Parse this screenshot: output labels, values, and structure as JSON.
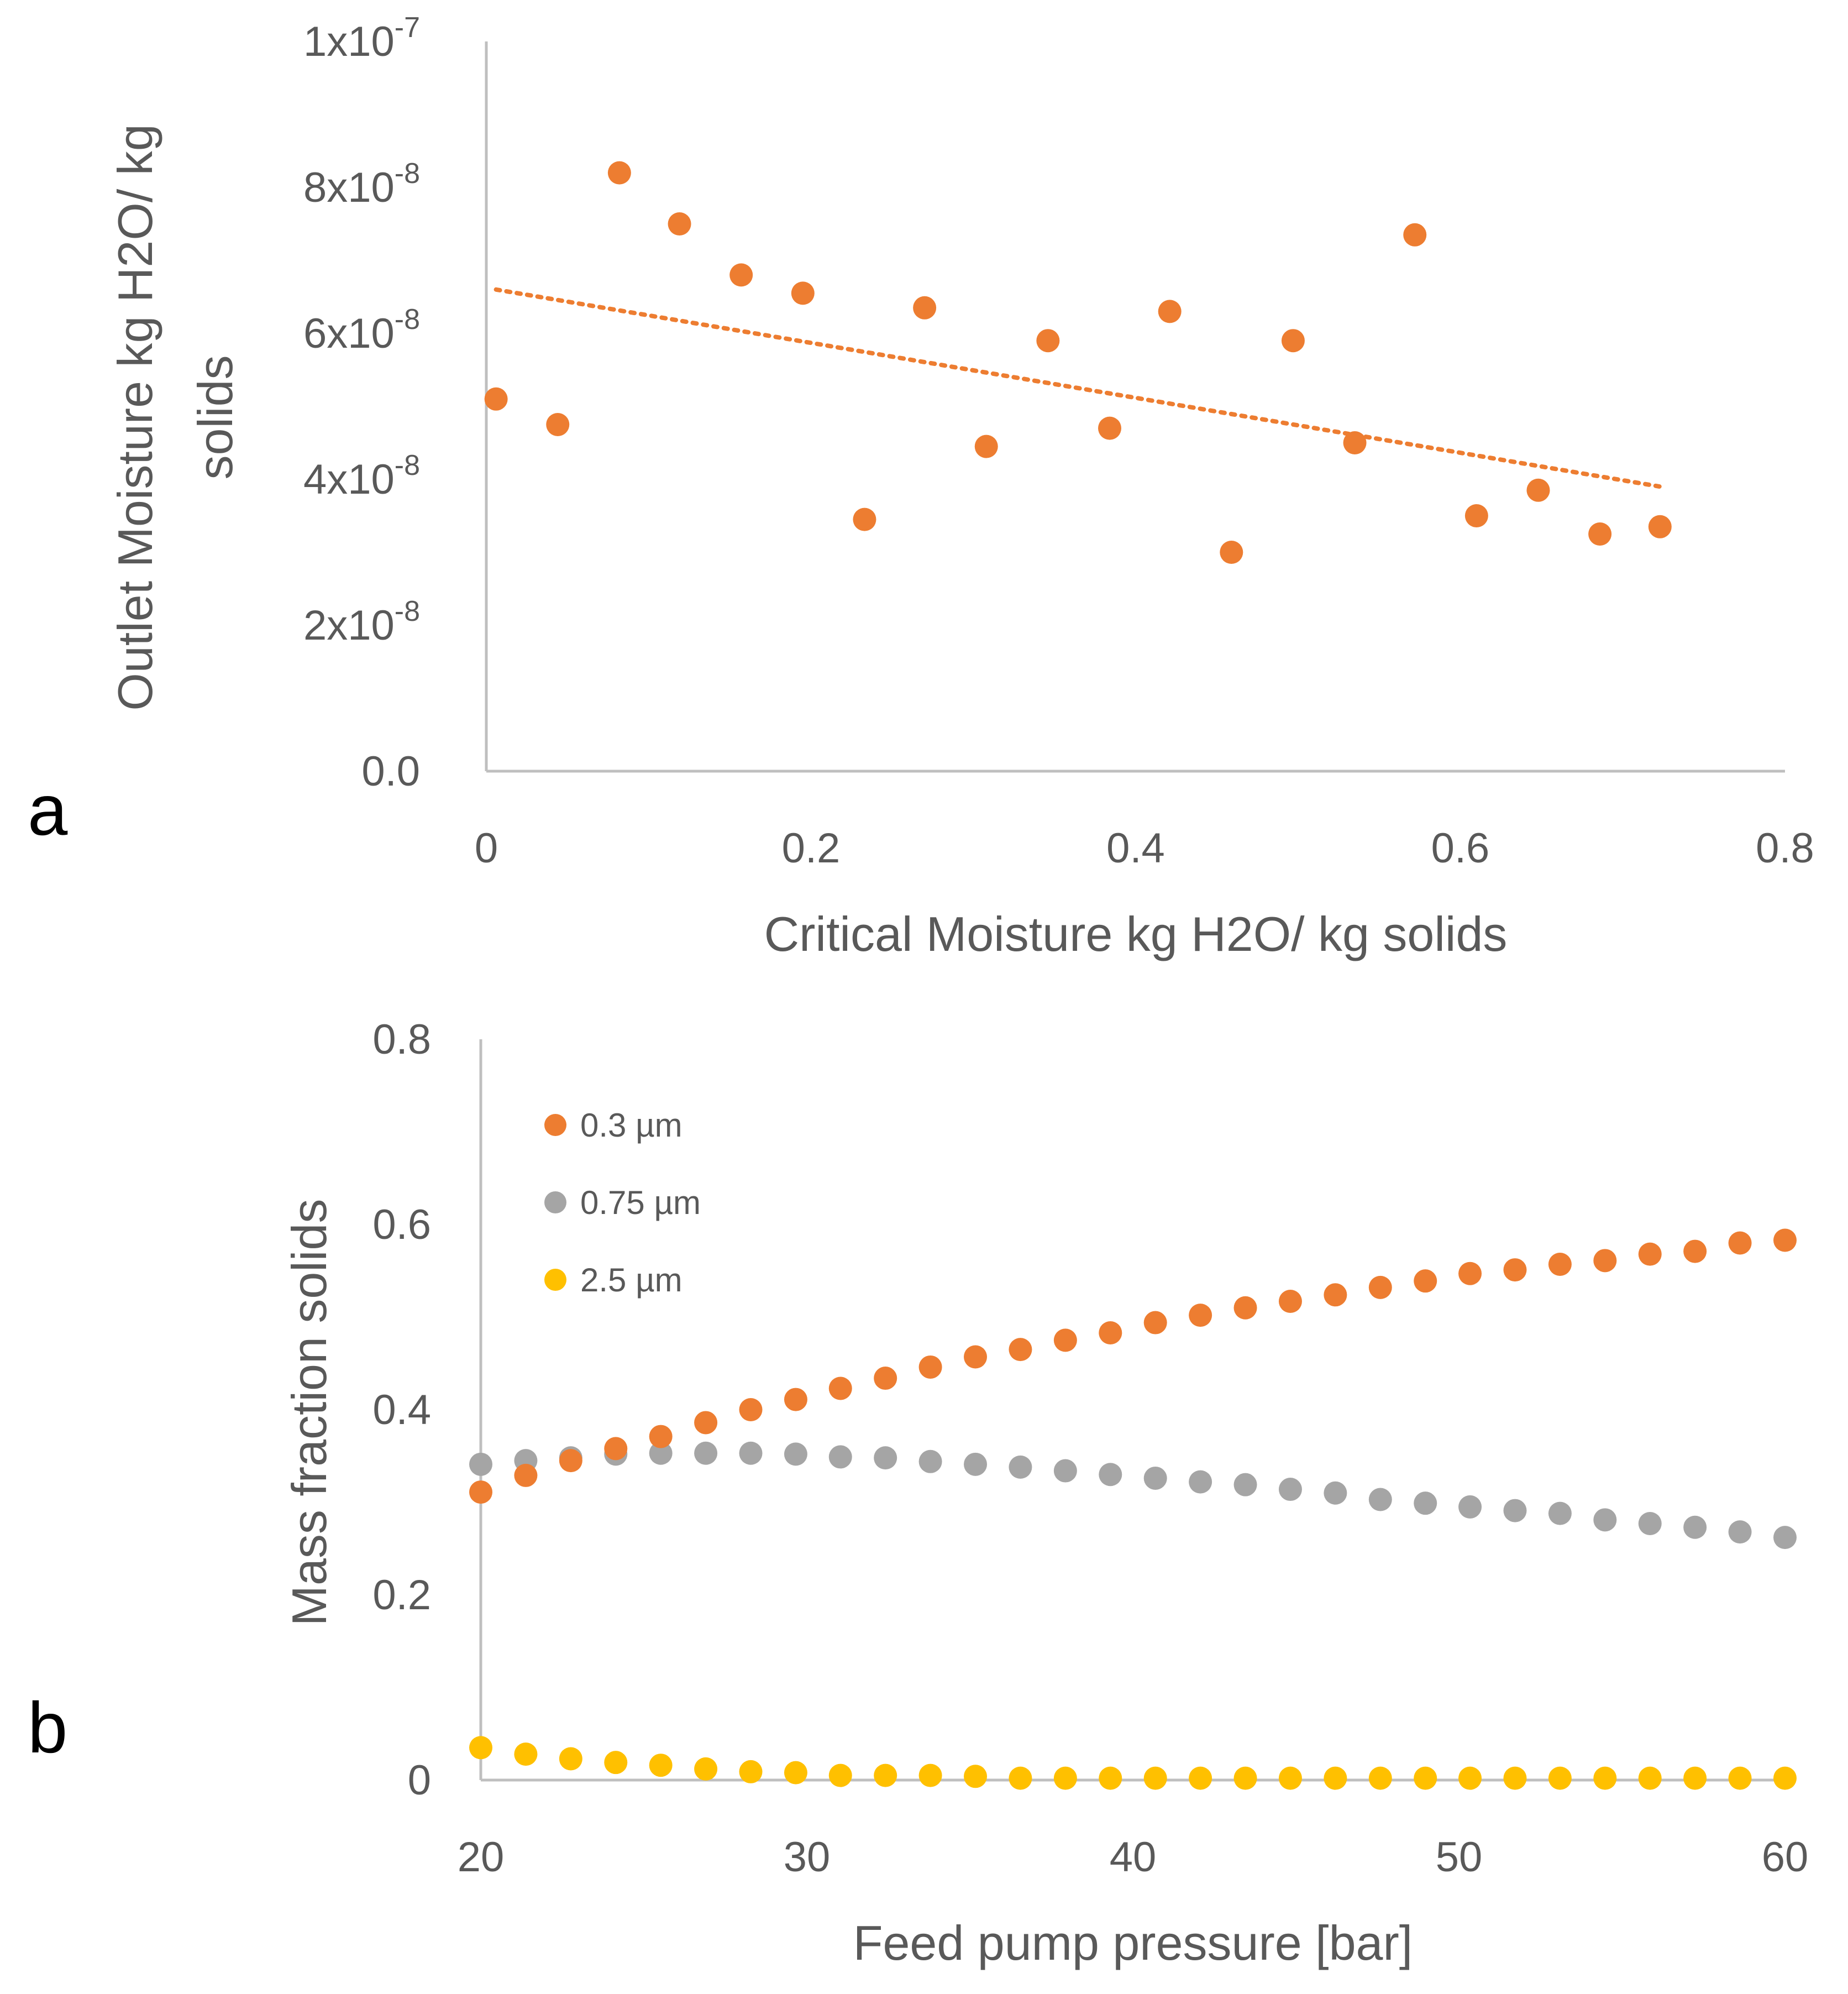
{
  "chart_data": [
    {
      "panel_label": "a",
      "type": "scatter",
      "xlabel": "Critical Moisture kg H2O/ kg solids",
      "ylabel_line1": "Outlet  Moisture kg H2O/ kg",
      "ylabel_line2": "solids",
      "xlim": [
        0,
        0.8
      ],
      "ylim": [
        0,
        1e-07
      ],
      "x_ticks": [
        {
          "value": 0,
          "label": "0"
        },
        {
          "value": 0.2,
          "label": "0.2"
        },
        {
          "value": 0.4,
          "label": "0.4"
        },
        {
          "value": 0.6,
          "label": "0.6"
        },
        {
          "value": 0.8,
          "label": "0.8"
        }
      ],
      "y_ticks": [
        {
          "value": 0,
          "mantissa": "0.0",
          "exponent": ""
        },
        {
          "value": 2e-08,
          "mantissa": "2x10",
          "exponent": "-8"
        },
        {
          "value": 4e-08,
          "mantissa": "4x10",
          "exponent": "-8"
        },
        {
          "value": 6e-08,
          "mantissa": "6x10",
          "exponent": "-8"
        },
        {
          "value": 8e-08,
          "mantissa": "8x10",
          "exponent": "-8"
        },
        {
          "value": 1e-07,
          "mantissa": "1x10",
          "exponent": "-7"
        }
      ],
      "series": [
        {
          "name": "Outlet Moisture",
          "color": "#ED7D31",
          "points": [
            [
              0.006,
              5.1e-08
            ],
            [
              0.044,
              4.75e-08
            ],
            [
              0.082,
              8.2e-08
            ],
            [
              0.119,
              7.5e-08
            ],
            [
              0.157,
              6.8e-08
            ],
            [
              0.195,
              6.55e-08
            ],
            [
              0.233,
              3.45e-08
            ],
            [
              0.27,
              6.35e-08
            ],
            [
              0.308,
              4.45e-08
            ],
            [
              0.346,
              5.9e-08
            ],
            [
              0.384,
              4.7e-08
            ],
            [
              0.421,
              6.3e-08
            ],
            [
              0.459,
              3e-08
            ],
            [
              0.497,
              5.9e-08
            ],
            [
              0.535,
              4.5e-08
            ],
            [
              0.572,
              7.35e-08
            ],
            [
              0.61,
              3.5e-08
            ],
            [
              0.648,
              3.85e-08
            ],
            [
              0.686,
              3.25e-08
            ],
            [
              0.723,
              3.35e-08
            ]
          ]
        }
      ],
      "trendline": {
        "style": "dotted",
        "color": "#ED7D31",
        "x": [
          0.006,
          0.723
        ],
        "y": [
          6.6e-08,
          3.9e-08
        ]
      }
    },
    {
      "panel_label": "b",
      "type": "scatter",
      "xlabel": "Feed pump pressure [bar]",
      "ylabel": "Mass fraction solids",
      "xlim": [
        20,
        60
      ],
      "ylim": [
        0,
        0.8
      ],
      "x_ticks": [
        {
          "value": 20,
          "label": "20"
        },
        {
          "value": 30,
          "label": "30"
        },
        {
          "value": 40,
          "label": "40"
        },
        {
          "value": 50,
          "label": "50"
        },
        {
          "value": 60,
          "label": "60"
        }
      ],
      "y_ticks": [
        {
          "value": 0,
          "label": "0"
        },
        {
          "value": 0.2,
          "label": "0.2"
        },
        {
          "value": 0.4,
          "label": "0.4"
        },
        {
          "value": 0.6,
          "label": "0.6"
        },
        {
          "value": 0.8,
          "label": "0.8"
        }
      ],
      "x": [
        20,
        21.38,
        22.76,
        24.14,
        25.52,
        26.9,
        28.28,
        29.66,
        31.03,
        32.41,
        33.79,
        35.17,
        36.55,
        37.93,
        39.31,
        40.69,
        42.07,
        43.45,
        44.83,
        46.21,
        47.59,
        48.97,
        50.34,
        51.72,
        53.1,
        54.48,
        55.86,
        57.24,
        58.62,
        60
      ],
      "legend": [
        {
          "label": "0.3 µm",
          "color": "#ED7D31"
        },
        {
          "label": "0.75 µm",
          "color": "#A5A5A5"
        },
        {
          "label": "2.5 µm",
          "color": "#FFC000"
        }
      ],
      "series": [
        {
          "name": "0.3 µm",
          "color": "#ED7D31",
          "values": [
            0.311,
            0.329,
            0.345,
            0.358,
            0.371,
            0.386,
            0.4,
            0.411,
            0.423,
            0.434,
            0.446,
            0.457,
            0.465,
            0.475,
            0.483,
            0.494,
            0.502,
            0.51,
            0.517,
            0.524,
            0.532,
            0.539,
            0.547,
            0.551,
            0.557,
            0.561,
            0.568,
            0.571,
            0.58,
            0.583
          ]
        },
        {
          "name": "0.75 µm",
          "color": "#A5A5A5",
          "values": [
            0.341,
            0.345,
            0.348,
            0.352,
            0.353,
            0.353,
            0.353,
            0.352,
            0.349,
            0.348,
            0.344,
            0.341,
            0.338,
            0.334,
            0.33,
            0.326,
            0.322,
            0.319,
            0.314,
            0.31,
            0.303,
            0.299,
            0.295,
            0.291,
            0.288,
            0.281,
            0.277,
            0.273,
            0.268,
            0.262
          ]
        },
        {
          "name": "2.5 µm",
          "color": "#FFC000",
          "values": [
            0.035,
            0.028,
            0.023,
            0.019,
            0.016,
            0.012,
            0.009,
            0.008,
            0.005,
            0.005,
            0.005,
            0.004,
            0.002,
            0.002,
            0.002,
            0.002,
            0.002,
            0.002,
            0.002,
            0.002,
            0.002,
            0.002,
            0.002,
            0.002,
            0.002,
            0.002,
            0.002,
            0.002,
            0.002,
            0.002
          ]
        }
      ]
    }
  ]
}
